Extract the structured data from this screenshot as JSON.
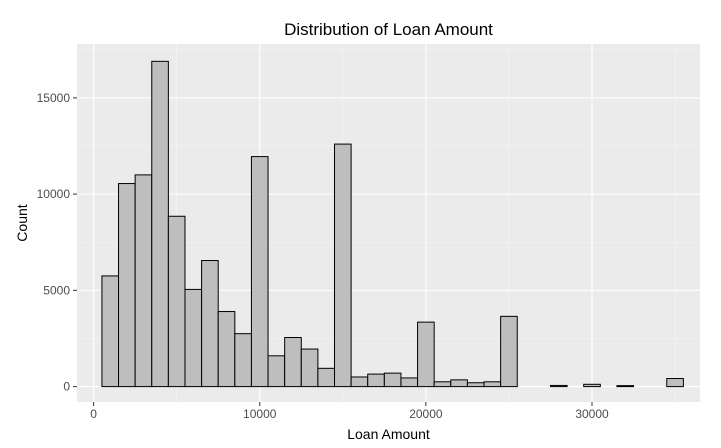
{
  "chart_data": {
    "type": "bar",
    "subtype": "histogram",
    "title": "Distribution of Loan Amount",
    "xlabel": "Loan Amount",
    "ylabel": "Count",
    "xlim": [
      -1000,
      36500
    ],
    "ylim": [
      -800,
      17800
    ],
    "grid": true,
    "legend": "none",
    "x_ticks": [
      0,
      10000,
      20000,
      30000
    ],
    "y_ticks": [
      0,
      5000,
      10000,
      15000
    ],
    "bin_width": 1000,
    "x": [
      1000,
      2000,
      3000,
      4000,
      5000,
      6000,
      7000,
      8000,
      9000,
      10000,
      11000,
      12000,
      13000,
      14000,
      15000,
      16000,
      17000,
      18000,
      19000,
      20000,
      21000,
      22000,
      23000,
      24000,
      25000,
      26000,
      27000,
      28000,
      29000,
      30000,
      31000,
      32000,
      33000,
      34000,
      35000
    ],
    "values": [
      5750,
      10550,
      11000,
      16900,
      8850,
      5050,
      6550,
      3900,
      2750,
      11950,
      1600,
      2550,
      1950,
      950,
      12600,
      500,
      650,
      700,
      450,
      3350,
      250,
      350,
      200,
      250,
      3650,
      0,
      0,
      60,
      0,
      120,
      0,
      50,
      0,
      0,
      420
    ],
    "colors": {
      "bar_fill": "#bebebe",
      "bar_stroke": "#000000",
      "panel_background": "#ebebeb",
      "grid_major": "#ffffff",
      "grid_minor": "#f5f5f5"
    }
  }
}
